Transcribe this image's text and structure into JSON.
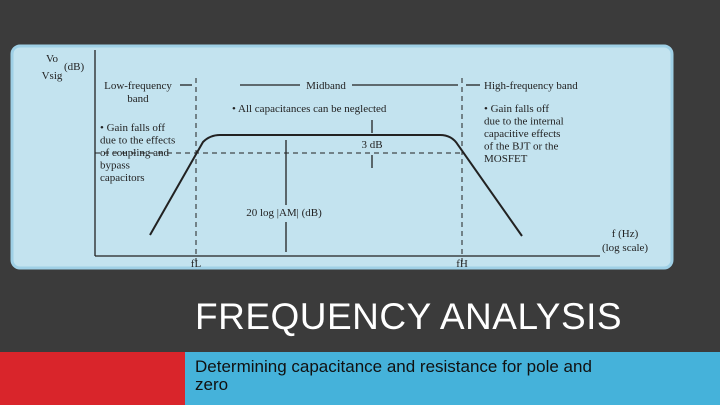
{
  "slide": {
    "title": "FREQUENCY ANALYSIS",
    "subtitle_lines": [
      "Determining capacitance and resistance for pole and",
      "zero"
    ]
  },
  "figure": {
    "y_axis_label": {
      "numerator": "Vo",
      "denominator": "Vsig",
      "unit": "(dB)"
    },
    "low_band": [
      "Low-frequency",
      "band"
    ],
    "midband": "Midband",
    "high_band": "High-frequency band",
    "mid_note": "• All capacitances can be neglected",
    "low_note": [
      "• Gain falls off",
      "due to the effects",
      "of coupling and",
      "bypass",
      "capacitors"
    ],
    "high_note": [
      "• Gain falls off",
      "due to the internal",
      "capacitive effects",
      "of the BJT or the",
      "MOSFET"
    ],
    "drop_label": "3 dB",
    "gain_label": "20 log |AM| (dB)",
    "x_axis_label": [
      "f (Hz)",
      "(log scale)"
    ],
    "f_low": "fL",
    "f_high": "fH"
  }
}
